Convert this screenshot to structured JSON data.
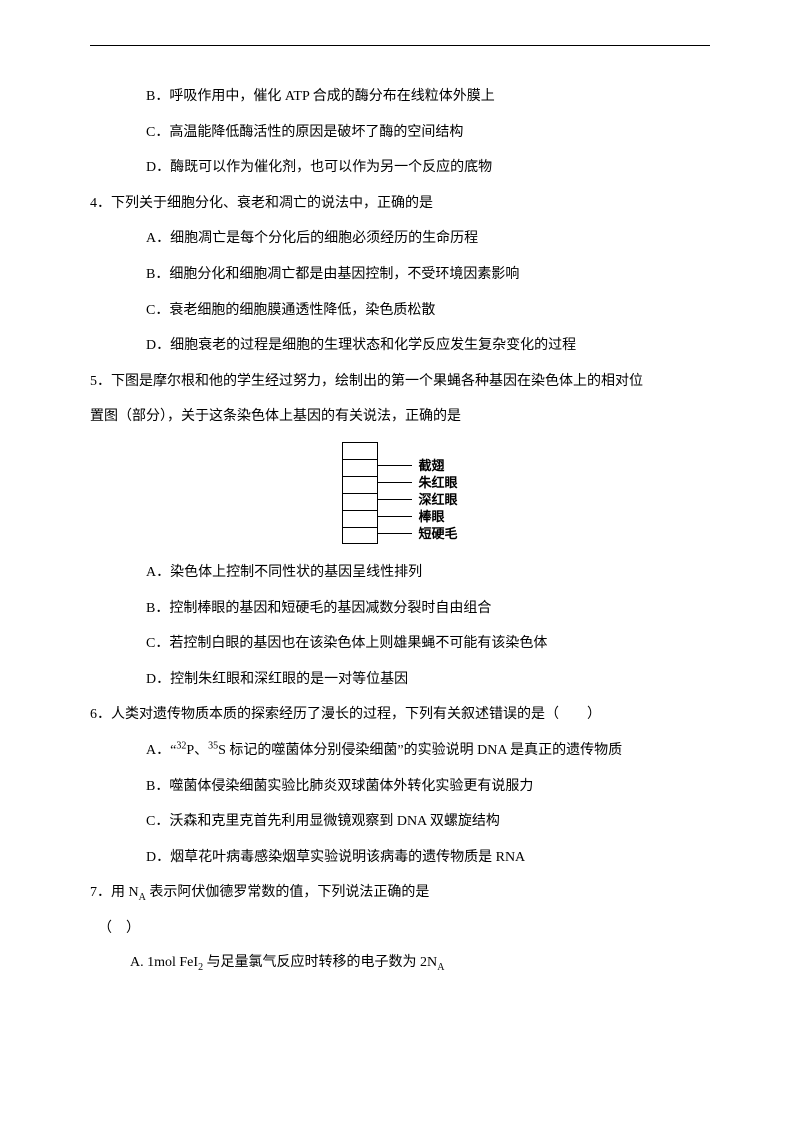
{
  "q3_options": {
    "b": "B．呼吸作用中，催化 ATP 合成的酶分布在线粒体外膜上",
    "c": "C．高温能降低酶活性的原因是破坏了酶的空间结构",
    "d": "D．酶既可以作为催化剂，也可以作为另一个反应的底物"
  },
  "q4": {
    "stem": "4．下列关于细胞分化、衰老和凋亡的说法中，正确的是",
    "a": "A．细胞凋亡是每个分化后的细胞必须经历的生命历程",
    "b": "B．细胞分化和细胞凋亡都是由基因控制，不受环境因素影响",
    "c": "C．衰老细胞的细胞膜通透性降低，染色质松散",
    "d": "D．细胞衰老的过程是细胞的生理状态和化学反应发生复杂变化的过程"
  },
  "q5": {
    "stem1": "5．下图是摩尔根和他的学生经过努力，绘制出的第一个果蝇各种基因在染色体上的相对位",
    "stem2": "置图（部分），关于这条染色体上基因的有关说法，正确的是",
    "a": "A．染色体上控制不同性状的基因呈线性排列",
    "b": "B．控制棒眼的基因和短硬毛的基因减数分裂时自由组合",
    "c": "C．若控制白眼的基因也在该染色体上则雄果蝇不可能有该染色体",
    "d": "D．控制朱红眼和深红眼的是一对等位基因"
  },
  "q6": {
    "stem": "6．人类对遗传物质本质的探索经历了漫长的过程，下列有关叙述错误的是（　　）",
    "a_prefix": "A．“",
    "a_mid1": "P、",
    "a_mid2": "S 标记的噬菌体分别侵染细菌”的实验说明 DNA 是真正的遗传物质",
    "a_sup1": "32",
    "a_sup2": "35",
    "b": "B．噬菌体侵染细菌实验比肺炎双球菌体外转化实验更有说服力",
    "c": "C．沃森和克里克首先利用显微镜观察到 DNA 双螺旋结构",
    "d": "D．烟草花叶病毒感染烟草实验说明该病毒的遗传物质是 RNA"
  },
  "q7": {
    "stem_prefix": "7．用 N",
    "stem_sub": "A",
    "stem_suffix": " 表示阿伏伽德罗常数的值，下列说法正确的是",
    "paren": "（　）",
    "a_prefix": "A. 1mol FeI",
    "a_sub1": "2",
    "a_mid": " 与足量氯气反应时转移的电子数为 2N",
    "a_sub2": "A"
  },
  "diagram": {
    "labels": [
      "截翅",
      "朱红眼",
      "深红眼",
      "棒眼",
      "短硬毛"
    ],
    "rung_count": 6,
    "rung_width": 36,
    "rung_height": 17,
    "connector_width": 34,
    "border_color": "#000000",
    "label_font_size": 13
  }
}
